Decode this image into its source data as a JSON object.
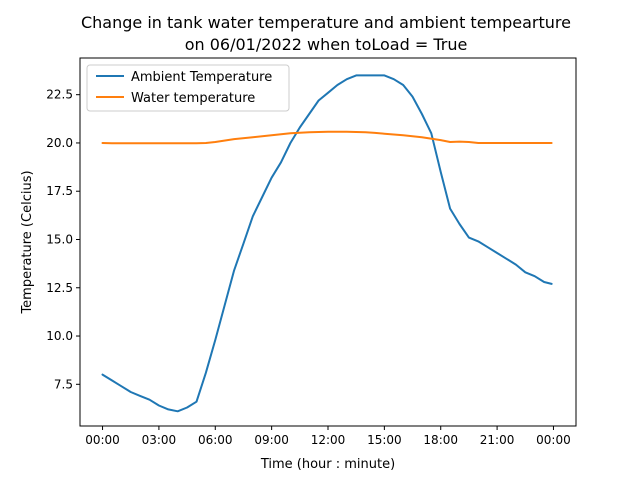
{
  "chart_data": {
    "type": "line",
    "title_line1": "Change in tank water temperature and ambient tempearture",
    "title_line2": "on 06/01/2022 when toLoad = True",
    "xlabel": "Time (hour : minute)",
    "ylabel": "Temperature (Celcius)",
    "x_unit": "hours",
    "xlim": [
      -1.2,
      25.2
    ],
    "ylim": [
      5.34,
      24.4
    ],
    "x_ticks": [
      0,
      3,
      6,
      9,
      12,
      15,
      18,
      21,
      24
    ],
    "x_tick_labels": [
      "00:00",
      "03:00",
      "06:00",
      "09:00",
      "12:00",
      "15:00",
      "18:00",
      "21:00",
      "00:00"
    ],
    "y_ticks": [
      7.5,
      10.0,
      12.5,
      15.0,
      17.5,
      20.0,
      22.5
    ],
    "y_tick_labels": [
      "7.5",
      "10.0",
      "12.5",
      "15.0",
      "17.5",
      "20.0",
      "22.5"
    ],
    "grid": false,
    "legend_position": "top-left",
    "series": [
      {
        "name": "Ambient Temperature",
        "color": "#1f77b4",
        "x": [
          0,
          0.5,
          1,
          1.5,
          2,
          2.5,
          3,
          3.5,
          4,
          4.5,
          5,
          5.5,
          6,
          6.5,
          7,
          7.5,
          8,
          8.5,
          9,
          9.5,
          10,
          10.5,
          11,
          11.5,
          12,
          12.5,
          13,
          13.5,
          14,
          14.5,
          15,
          15.5,
          16,
          16.5,
          17,
          17.5,
          18,
          18.5,
          19,
          19.5,
          20,
          20.5,
          21,
          21.5,
          22,
          22.5,
          23,
          23.5,
          23.9
        ],
        "values": [
          8.0,
          7.7,
          7.4,
          7.1,
          6.9,
          6.7,
          6.4,
          6.2,
          6.1,
          6.3,
          6.6,
          8.1,
          9.8,
          11.6,
          13.4,
          14.8,
          16.2,
          17.2,
          18.2,
          19.0,
          20.0,
          20.8,
          21.5,
          22.2,
          22.6,
          23.0,
          23.3,
          23.5,
          23.5,
          23.5,
          23.5,
          23.3,
          23.0,
          22.4,
          21.5,
          20.5,
          18.5,
          16.6,
          15.8,
          15.1,
          14.9,
          14.6,
          14.3,
          14.0,
          13.7,
          13.3,
          13.1,
          12.8,
          12.7
        ]
      },
      {
        "name": "Water temperature",
        "color": "#ff7f0e",
        "x": [
          0,
          0.5,
          1,
          2,
          3,
          4,
          5,
          5.5,
          6,
          7,
          8,
          9,
          10,
          11,
          12,
          13,
          14,
          14.5,
          15,
          16,
          17,
          18,
          18.5,
          19,
          19.5,
          20,
          21,
          22,
          23,
          23.9
        ],
        "values": [
          20.0,
          19.98,
          19.98,
          19.98,
          19.98,
          19.98,
          19.98,
          20.0,
          20.05,
          20.2,
          20.3,
          20.4,
          20.5,
          20.55,
          20.58,
          20.58,
          20.55,
          20.52,
          20.48,
          20.4,
          20.3,
          20.15,
          20.05,
          20.07,
          20.05,
          20.0,
          20.0,
          20.0,
          20.0,
          20.0
        ]
      }
    ]
  }
}
